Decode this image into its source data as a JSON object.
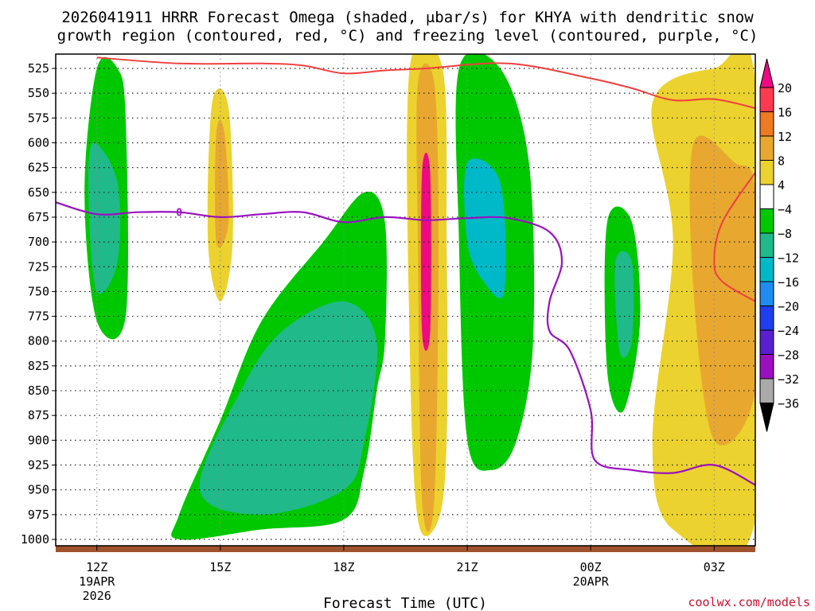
{
  "title_line1": "2026041911 HRRR Forecast Omega (shaded, μbar/s) for KHYA with dendritic snow",
  "title_line2": "growth region (contoured, red, °C) and freezing level (contoured, purple, °C)",
  "watermark": "coolwx.com/models",
  "colors": {
    "red_contour": "#f04040",
    "purple_contour": "#9a10c0",
    "ground": "#a0522d",
    "grid": "#888888"
  },
  "chart_data": {
    "type": "heatmap",
    "xlabel": "Forecast Time (UTC)",
    "ylabel": "",
    "y_ticks": [
      525,
      550,
      575,
      600,
      625,
      650,
      675,
      700,
      725,
      750,
      775,
      800,
      825,
      850,
      875,
      900,
      925,
      950,
      975,
      1000
    ],
    "y_tick_labels": [
      "525",
      "550",
      "575",
      "600",
      "625",
      "650",
      "675",
      "700",
      "725",
      "750",
      "775",
      "800",
      "825",
      "850",
      "875",
      "900",
      "925",
      "950",
      "975",
      "1000"
    ],
    "ylim": [
      1000,
      510
    ],
    "xlim": [
      11.0,
      28.0
    ],
    "x_ticks": [
      {
        "hour": 12,
        "label": "12Z",
        "sub1": "19APR",
        "sub2": "2026"
      },
      {
        "hour": 15,
        "label": "15Z",
        "sub1": "",
        "sub2": ""
      },
      {
        "hour": 18,
        "label": "18Z",
        "sub1": "",
        "sub2": ""
      },
      {
        "hour": 21,
        "label": "21Z",
        "sub1": "",
        "sub2": ""
      },
      {
        "hour": 24,
        "label": "00Z",
        "sub1": "20APR",
        "sub2": ""
      },
      {
        "hour": 27,
        "label": "03Z",
        "sub1": "",
        "sub2": ""
      }
    ],
    "colorbar": {
      "units": "μbar/s",
      "labels": [
        "20",
        "16",
        "12",
        "8",
        "4",
        "−4",
        "−8",
        "−12",
        "−16",
        "−20",
        "−24",
        "−28",
        "−32",
        "−36"
      ],
      "colors": [
        "#ff3a50",
        "#ee7a22",
        "#e8a830",
        "#ecd22e",
        "#ffffff",
        "#00c800",
        "#20b98a",
        "#00b9c8",
        "#1e8cf0",
        "#1e3ef0",
        "#5820d0",
        "#9a10c0",
        "#aaaaaa"
      ],
      "top_arrow_color": "#ee0a82",
      "bottom_arrow_color": "#000000"
    },
    "omega_features": [
      {
        "name": "green-descent-left",
        "level": -8,
        "points": [
          [
            12.0,
            525
          ],
          [
            12.5,
            525
          ],
          [
            12.7,
            575
          ],
          [
            12.7,
            775
          ],
          [
            12.0,
            780
          ],
          [
            11.7,
            650
          ]
        ]
      },
      {
        "name": "teal-core-left",
        "level": -12,
        "points": [
          [
            11.9,
            600
          ],
          [
            12.5,
            640
          ],
          [
            12.5,
            720
          ],
          [
            12.0,
            750
          ],
          [
            11.8,
            660
          ]
        ]
      },
      {
        "name": "yellow-plume-15z",
        "level": 4,
        "points": [
          [
            14.8,
            560
          ],
          [
            15.2,
            565
          ],
          [
            15.3,
            700
          ],
          [
            15.0,
            760
          ],
          [
            14.7,
            700
          ]
        ]
      },
      {
        "name": "orange-plume-15z",
        "level": 8,
        "points": [
          [
            14.9,
            590
          ],
          [
            15.1,
            590
          ],
          [
            15.2,
            680
          ],
          [
            14.9,
            700
          ]
        ]
      },
      {
        "name": "green-plume-mid",
        "level": -8,
        "points": [
          [
            14.0,
            975
          ],
          [
            15.0,
            880
          ],
          [
            16.0,
            780
          ],
          [
            17.5,
            700
          ],
          [
            18.5,
            650
          ],
          [
            19.0,
            680
          ],
          [
            19.0,
            800
          ],
          [
            18.8,
            850
          ],
          [
            18.5,
            930
          ],
          [
            18.0,
            980
          ],
          [
            16.0,
            990
          ],
          [
            14.0,
            1000
          ]
        ]
      },
      {
        "name": "teal-plume-mid",
        "level": -12,
        "points": [
          [
            14.5,
            950
          ],
          [
            15.5,
            850
          ],
          [
            16.5,
            790
          ],
          [
            18.0,
            760
          ],
          [
            18.8,
            800
          ],
          [
            18.5,
            900
          ],
          [
            18.0,
            950
          ],
          [
            16.0,
            975
          ]
        ]
      },
      {
        "name": "yellow-upward-20z",
        "level": 4,
        "points": [
          [
            19.6,
            525
          ],
          [
            20.4,
            525
          ],
          [
            20.5,
            700
          ],
          [
            20.5,
            900
          ],
          [
            20.3,
            980
          ],
          [
            19.8,
            980
          ],
          [
            19.6,
            800
          ]
        ]
      },
      {
        "name": "orange-upward-20z",
        "level": 8,
        "points": [
          [
            19.8,
            540
          ],
          [
            20.2,
            540
          ],
          [
            20.3,
            700
          ],
          [
            20.2,
            960
          ],
          [
            19.9,
            960
          ],
          [
            19.8,
            700
          ]
        ]
      },
      {
        "name": "magenta-core-20z",
        "level": 20,
        "points": [
          [
            19.9,
            630
          ],
          [
            20.1,
            630
          ],
          [
            20.1,
            790
          ],
          [
            19.9,
            790
          ]
        ]
      },
      {
        "name": "green-descent-21z",
        "level": -8,
        "points": [
          [
            20.8,
            525
          ],
          [
            21.8,
            525
          ],
          [
            22.5,
            620
          ],
          [
            22.6,
            800
          ],
          [
            22.2,
            900
          ],
          [
            21.6,
            930
          ],
          [
            21.0,
            900
          ],
          [
            20.8,
            700
          ]
        ]
      },
      {
        "name": "blue-core-21z",
        "level": -16,
        "points": [
          [
            21.0,
            620
          ],
          [
            21.8,
            640
          ],
          [
            21.9,
            750
          ],
          [
            21.4,
            740
          ],
          [
            21.0,
            700
          ]
        ]
      },
      {
        "name": "green-pocket-00z",
        "level": -8,
        "points": [
          [
            24.4,
            680
          ],
          [
            25.0,
            680
          ],
          [
            25.2,
            780
          ],
          [
            24.8,
            870
          ],
          [
            24.4,
            830
          ]
        ]
      },
      {
        "name": "teal-pocket-00z",
        "level": -12,
        "points": [
          [
            24.6,
            720
          ],
          [
            25.0,
            720
          ],
          [
            25.0,
            800
          ],
          [
            24.7,
            810
          ]
        ]
      },
      {
        "name": "yellow-right-broad",
        "level": 4,
        "points": [
          [
            25.5,
            560
          ],
          [
            27.0,
            525
          ],
          [
            28.0,
            540
          ],
          [
            28.0,
            980
          ],
          [
            26.0,
            990
          ],
          [
            25.5,
            900
          ],
          [
            26.0,
            700
          ]
        ]
      },
      {
        "name": "orange-right-broad",
        "level": 8,
        "points": [
          [
            26.5,
            600
          ],
          [
            27.5,
            620
          ],
          [
            28.0,
            650
          ],
          [
            28.0,
            850
          ],
          [
            27.0,
            900
          ],
          [
            26.5,
            750
          ]
        ]
      }
    ],
    "dgz_contour_red": [
      [
        12.0,
        514
      ],
      [
        14.0,
        520
      ],
      [
        16.0,
        520
      ],
      [
        17.0,
        522
      ],
      [
        18.0,
        530
      ],
      [
        19.0,
        527
      ],
      [
        20.0,
        525
      ],
      [
        22.0,
        520
      ],
      [
        24.0,
        535
      ],
      [
        25.0,
        545
      ],
      [
        26.0,
        557
      ],
      [
        27.0,
        556
      ],
      [
        28.0,
        565
      ]
    ],
    "dgz_lower_contour_red": [
      [
        28.0,
        630
      ],
      [
        27.2,
        680
      ],
      [
        27.0,
        720
      ],
      [
        27.2,
        740
      ],
      [
        28.0,
        760
      ]
    ],
    "freezing_level_purple": [
      [
        11.0,
        660
      ],
      [
        12.0,
        672
      ],
      [
        13.0,
        670
      ],
      [
        14.0,
        670
      ],
      [
        15.0,
        675
      ],
      [
        16.0,
        672
      ],
      [
        17.0,
        670
      ],
      [
        18.0,
        680
      ],
      [
        19.0,
        675
      ],
      [
        20.0,
        678
      ],
      [
        21.0,
        676
      ],
      [
        22.0,
        676
      ],
      [
        23.0,
        690
      ],
      [
        23.3,
        720
      ],
      [
        23.0,
        760
      ],
      [
        23.0,
        790
      ],
      [
        23.5,
        810
      ],
      [
        24.0,
        870
      ],
      [
        24.1,
        920
      ],
      [
        25.0,
        930
      ],
      [
        26.0,
        933
      ],
      [
        27.0,
        925
      ],
      [
        28.0,
        945
      ]
    ],
    "freezing_level_label": "0"
  }
}
